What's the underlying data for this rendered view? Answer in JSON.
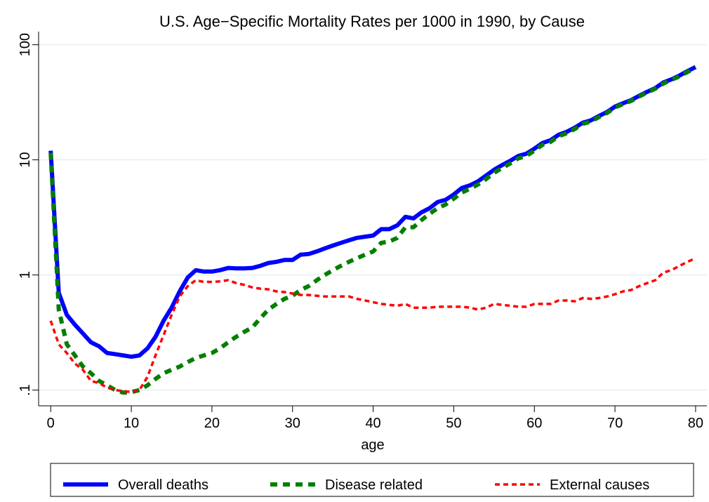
{
  "chart_data": {
    "type": "line",
    "title": "U.S. Age−Specific Mortality Rates per 1000 in 1990, by Cause",
    "x_label": "age",
    "x": [
      0,
      1,
      2,
      3,
      4,
      5,
      6,
      7,
      8,
      9,
      10,
      11,
      12,
      13,
      14,
      15,
      16,
      17,
      18,
      19,
      20,
      21,
      22,
      23,
      24,
      25,
      26,
      27,
      28,
      29,
      30,
      31,
      32,
      33,
      34,
      35,
      36,
      37,
      38,
      39,
      40,
      41,
      42,
      43,
      44,
      45,
      46,
      47,
      48,
      49,
      50,
      51,
      52,
      53,
      54,
      55,
      56,
      57,
      58,
      59,
      60,
      61,
      62,
      63,
      64,
      65,
      66,
      67,
      68,
      69,
      70,
      71,
      72,
      73,
      74,
      75,
      76,
      77,
      78,
      79,
      80
    ],
    "series": [
      {
        "name": "Overall deaths",
        "color": "#0000ff",
        "line_style": "solid",
        "values": [
          12,
          0.7,
          0.45,
          0.37,
          0.31,
          0.26,
          0.24,
          0.21,
          0.205,
          0.2,
          0.195,
          0.2,
          0.23,
          0.29,
          0.4,
          0.52,
          0.72,
          0.95,
          1.1,
          1.07,
          1.07,
          1.1,
          1.15,
          1.14,
          1.14,
          1.15,
          1.2,
          1.27,
          1.3,
          1.35,
          1.35,
          1.5,
          1.52,
          1.6,
          1.7,
          1.8,
          1.9,
          2.0,
          2.1,
          2.15,
          2.2,
          2.5,
          2.5,
          2.7,
          3.2,
          3.1,
          3.5,
          3.8,
          4.3,
          4.5,
          5.0,
          5.7,
          6.0,
          6.5,
          7.3,
          8.2,
          9.0,
          9.8,
          10.8,
          11.3,
          12.5,
          14,
          14.8,
          16.5,
          17.5,
          19,
          21,
          22,
          24,
          26,
          29,
          31,
          33,
          36,
          39,
          42,
          47,
          50,
          54,
          59,
          64
        ]
      },
      {
        "name": "Disease related",
        "color": "#007f00",
        "line_style": "dashed",
        "values": [
          11.5,
          0.5,
          0.25,
          0.2,
          0.16,
          0.14,
          0.12,
          0.11,
          0.1,
          0.095,
          0.096,
          0.1,
          0.11,
          0.125,
          0.14,
          0.15,
          0.16,
          0.175,
          0.19,
          0.2,
          0.21,
          0.23,
          0.26,
          0.29,
          0.32,
          0.35,
          0.42,
          0.5,
          0.56,
          0.62,
          0.66,
          0.74,
          0.8,
          0.9,
          1.0,
          1.1,
          1.2,
          1.3,
          1.4,
          1.5,
          1.6,
          1.9,
          1.95,
          2.1,
          2.6,
          2.6,
          3.0,
          3.4,
          3.8,
          4.1,
          4.6,
          5.2,
          5.6,
          6.1,
          6.8,
          7.7,
          8.5,
          9.3,
          10.3,
          10.8,
          12,
          13.5,
          14.3,
          16,
          17,
          18.5,
          20.5,
          21.5,
          23.5,
          25.5,
          28.5,
          30.5,
          32.5,
          35.5,
          38.5,
          41.5,
          46,
          49.5,
          53,
          58,
          63
        ]
      },
      {
        "name": "External causes",
        "color": "#ff0000",
        "line_style": "short-dashed",
        "values": [
          0.4,
          0.25,
          0.21,
          0.17,
          0.15,
          0.12,
          0.115,
          0.105,
          0.1,
          0.098,
          0.096,
          0.1,
          0.13,
          0.2,
          0.3,
          0.45,
          0.65,
          0.8,
          0.9,
          0.87,
          0.87,
          0.88,
          0.9,
          0.85,
          0.82,
          0.78,
          0.76,
          0.75,
          0.72,
          0.71,
          0.69,
          0.67,
          0.67,
          0.66,
          0.65,
          0.65,
          0.65,
          0.65,
          0.62,
          0.6,
          0.58,
          0.56,
          0.55,
          0.54,
          0.56,
          0.52,
          0.52,
          0.52,
          0.53,
          0.53,
          0.53,
          0.53,
          0.52,
          0.5,
          0.52,
          0.56,
          0.55,
          0.54,
          0.53,
          0.53,
          0.56,
          0.56,
          0.56,
          0.6,
          0.6,
          0.59,
          0.63,
          0.62,
          0.63,
          0.65,
          0.68,
          0.72,
          0.74,
          0.8,
          0.85,
          0.9,
          1.05,
          1.1,
          1.2,
          1.3,
          1.4
        ]
      }
    ],
    "xlim": [
      -1.5,
      81.4
    ],
    "xticks": [
      0,
      10,
      20,
      30,
      40,
      50,
      60,
      70,
      80
    ],
    "ylim": [
      0.073,
      130
    ],
    "yticks": [
      {
        "value": 0.1,
        "label": ".1"
      },
      1,
      10,
      100
    ],
    "y_scale": "log",
    "grid": true,
    "legend_position": "bottom"
  }
}
